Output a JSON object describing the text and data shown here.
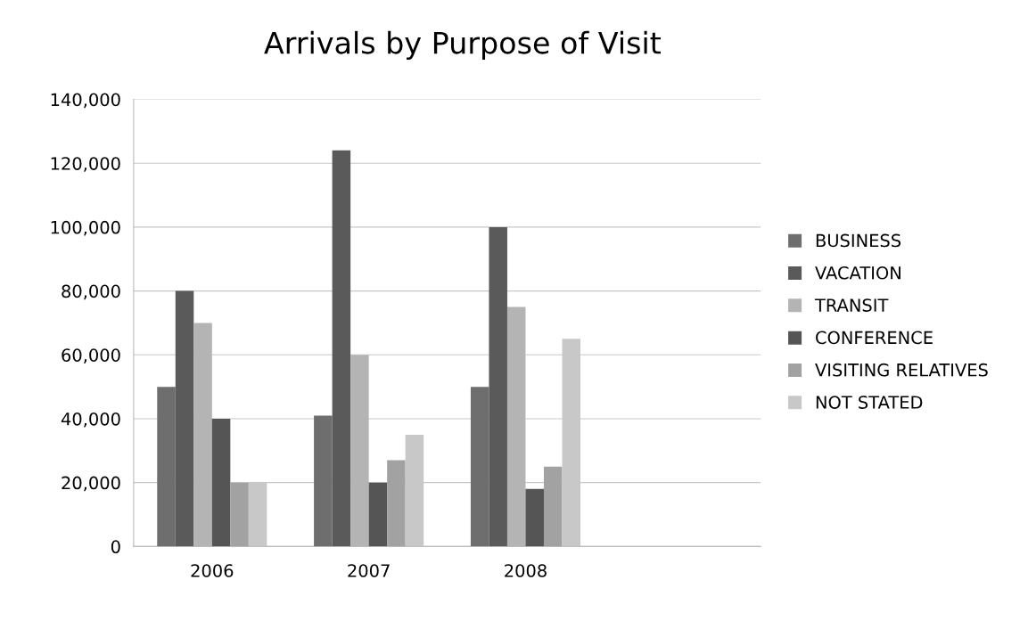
{
  "chart_data": {
    "type": "bar",
    "title": "Arrivals by Purpose of Visit",
    "categories": [
      "2006",
      "2007",
      "2008",
      null
    ],
    "series": [
      {
        "name": "BUSINESS",
        "color": "#6e6e6e",
        "values": [
          50000,
          41000,
          50000,
          null
        ]
      },
      {
        "name": "VACATION",
        "color": "#5a5a5a",
        "values": [
          80000,
          124000,
          100000,
          null
        ]
      },
      {
        "name": "TRANSIT",
        "color": "#b4b4b4",
        "values": [
          70000,
          60000,
          75000,
          null
        ]
      },
      {
        "name": "CONFERENCE",
        "color": "#555555",
        "values": [
          40000,
          20000,
          18000,
          null
        ]
      },
      {
        "name": "VISITING RELATIVES",
        "color": "#a2a2a2",
        "values": [
          20000,
          27000,
          25000,
          null
        ]
      },
      {
        "name": "NOT STATED",
        "color": "#c8c8c8",
        "values": [
          20000,
          35000,
          65000,
          null
        ]
      }
    ],
    "ylim": [
      0,
      140000
    ],
    "yticks": [
      {
        "value": 0,
        "label": "0"
      },
      {
        "value": 20000,
        "label": "20,000"
      },
      {
        "value": 40000,
        "label": "40,000"
      },
      {
        "value": 60000,
        "label": "60,000"
      },
      {
        "value": 80000,
        "label": "80,000"
      },
      {
        "value": 100000,
        "label": "100,000"
      },
      {
        "value": 120000,
        "label": "120,000"
      },
      {
        "value": 140000,
        "label": "140,000"
      }
    ],
    "grid": "y",
    "legend": "right"
  }
}
